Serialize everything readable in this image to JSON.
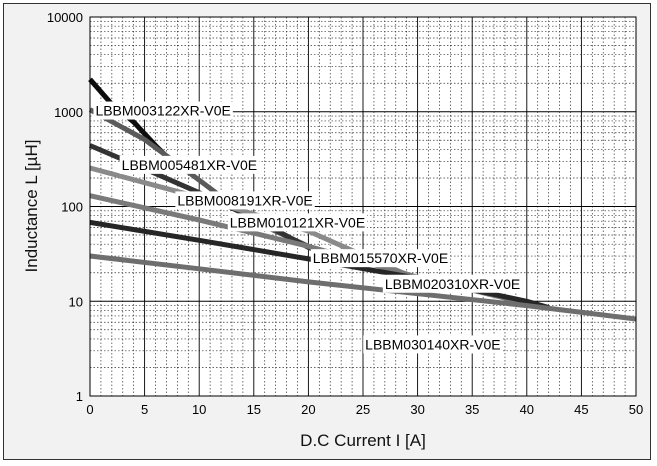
{
  "chart_data": {
    "type": "line",
    "xlabel": "D.C Current I [A]",
    "ylabel": "Inductance L  [µH]",
    "xlim": [
      0,
      50
    ],
    "ylim": [
      1,
      10000
    ],
    "y_scale": "log",
    "x_ticks": [
      0,
      5,
      10,
      15,
      20,
      25,
      30,
      35,
      40,
      45,
      50
    ],
    "y_ticks": [
      1,
      10,
      100,
      1000,
      10000
    ],
    "y_tick_labels": [
      "1",
      "10",
      "100",
      "1000",
      "10000"
    ],
    "grid": true,
    "series": [
      {
        "name": "LBBM003122XR-V0E",
        "color": "#0d0d0d",
        "x": [
          0,
          2,
          4,
          6,
          8
        ],
        "y": [
          2200,
          1200,
          780,
          440,
          260
        ]
      },
      {
        "name": "LBBM005481XR-V0E",
        "color": "#5a5a5a",
        "x": [
          0,
          5,
          10,
          15,
          20
        ],
        "y": [
          1050,
          510,
          190,
          70,
          38
        ]
      },
      {
        "name": "LBBM008191XR-V0E",
        "color": "#333333",
        "x": [
          0,
          5,
          10,
          15,
          20,
          25
        ],
        "y": [
          440,
          250,
          140,
          75,
          37,
          23
        ]
      },
      {
        "name": "LBBM010121XR-V0E",
        "color": "#8a8a8a",
        "x": [
          0,
          10,
          20,
          30
        ],
        "y": [
          255,
          125,
          55,
          17
        ]
      },
      {
        "name": "LBBM015570XR-V0E",
        "color": "#7a7a7a",
        "x": [
          0,
          10,
          20,
          30,
          40
        ],
        "y": [
          130,
          72,
          38,
          18,
          9.5
        ]
      },
      {
        "name": "LBBM020310XR-V0E",
        "color": "#262626",
        "x": [
          0,
          10,
          20,
          30,
          40,
          42
        ],
        "y": [
          68,
          44,
          28,
          17.5,
          10,
          8.6
        ]
      },
      {
        "name": "LBBM030140XR-V0E",
        "color": "#6e6e6e",
        "x": [
          0,
          10,
          20,
          30,
          40,
          50
        ],
        "y": [
          30,
          22,
          16,
          12,
          9,
          6.5
        ]
      }
    ]
  }
}
